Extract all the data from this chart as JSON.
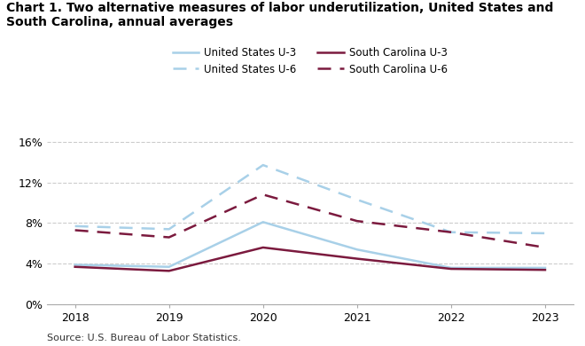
{
  "title": "Chart 1. Two alternative measures of labor underutilization, United States and\nSouth Carolina, annual averages",
  "years": [
    2018,
    2019,
    2020,
    2021,
    2022,
    2023
  ],
  "us_u3": [
    3.9,
    3.7,
    8.1,
    5.4,
    3.6,
    3.6
  ],
  "us_u6": [
    7.7,
    7.4,
    13.7,
    10.3,
    7.1,
    7.0
  ],
  "sc_u3": [
    3.7,
    3.3,
    5.6,
    4.5,
    3.5,
    3.4
  ],
  "sc_u6": [
    7.3,
    6.6,
    10.8,
    8.2,
    7.1,
    5.6
  ],
  "color_us": "#a8d0e8",
  "color_sc": "#7b1a3e",
  "ylim": [
    0,
    17
  ],
  "yticks": [
    0,
    4,
    8,
    12,
    16
  ],
  "yticklabels": [
    "0%",
    "4%",
    "8%",
    "12%",
    "16%"
  ],
  "source": "Source: U.S. Bureau of Labor Statistics.",
  "legend_labels": [
    "United States U-3",
    "United States U-6",
    "South Carolina U-3",
    "South Carolina U-6"
  ],
  "grid_color": "#cccccc",
  "background_color": "#ffffff",
  "title_fontsize": 10,
  "tick_fontsize": 9,
  "legend_fontsize": 8.5,
  "source_fontsize": 8
}
